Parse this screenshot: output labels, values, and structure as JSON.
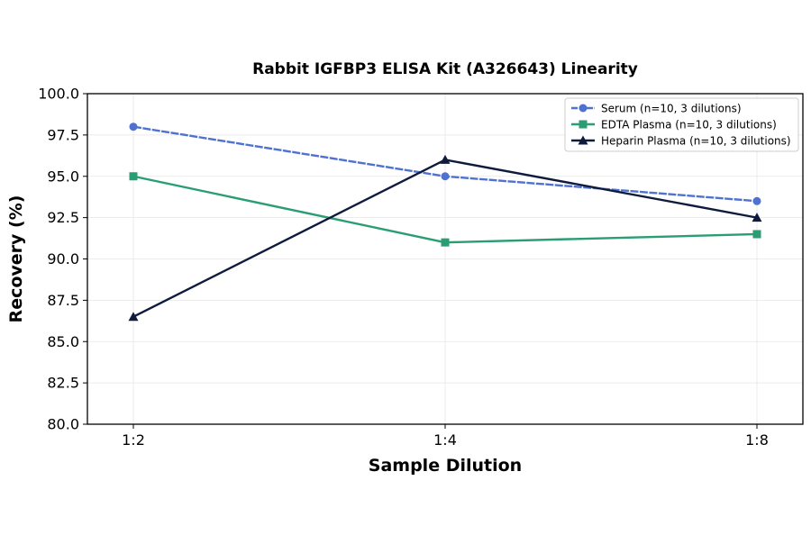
{
  "chart_data": {
    "type": "line",
    "title": "Rabbit IGFBP3 ELISA Kit (A326643) Linearity",
    "xlabel": "Sample Dilution",
    "ylabel": "Recovery (%)",
    "categories": [
      "1:2",
      "1:4",
      "1:8"
    ],
    "ylim": [
      80.0,
      100.0
    ],
    "yticks": [
      "80.0",
      "82.5",
      "85.0",
      "87.5",
      "90.0",
      "92.5",
      "95.0",
      "97.5",
      "100.0"
    ],
    "grid": true,
    "legend_position": "top-right",
    "series": [
      {
        "name": "Serum (n=10, 3 dilutions)",
        "values": [
          98.0,
          95.0,
          93.5
        ],
        "color": "#4f72d0",
        "marker": "circle",
        "dashed": true
      },
      {
        "name": "EDTA Plasma (n=10, 3 dilutions)",
        "values": [
          95.0,
          91.0,
          91.5
        ],
        "color": "#2a9d72",
        "marker": "square",
        "dashed": false
      },
      {
        "name": "Heparin Plasma (n=10, 3 dilutions)",
        "values": [
          86.5,
          96.0,
          92.5
        ],
        "color": "#0f1b3d",
        "marker": "triangle",
        "dashed": false
      }
    ]
  }
}
